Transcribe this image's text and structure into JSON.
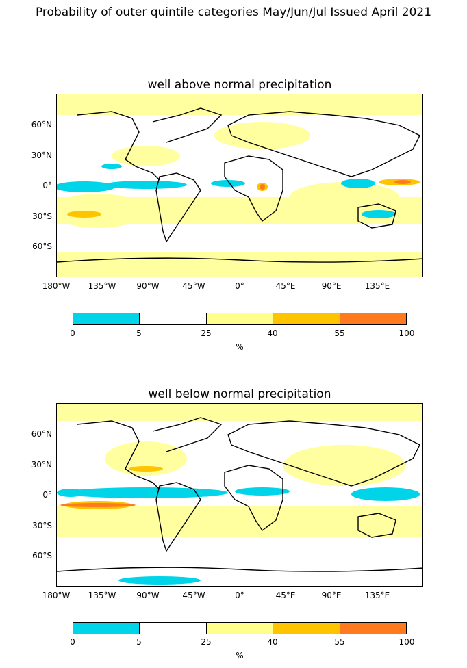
{
  "figure": {
    "title": "Probability of outer quintile categories May/Jun/Jul Issued April 2021"
  },
  "panels": [
    {
      "title": "well above normal precipitation"
    },
    {
      "title": "well below normal precipitation"
    }
  ],
  "axes": {
    "lat_labels": [
      "60°N",
      "30°N",
      "0°",
      "30°S",
      "60°S"
    ],
    "lon_labels": [
      "180°W",
      "135°W",
      "90°W",
      "45°W",
      "0°",
      "45°E",
      "90°E",
      "135°E"
    ]
  },
  "colorbar": {
    "ticks": [
      "0",
      "5",
      "25",
      "40",
      "55",
      "100"
    ],
    "unit": "%",
    "colors": [
      "#00d4e8",
      "#ffffff",
      "#ffff8c",
      "#ffc400",
      "#ff7a1e"
    ]
  }
}
